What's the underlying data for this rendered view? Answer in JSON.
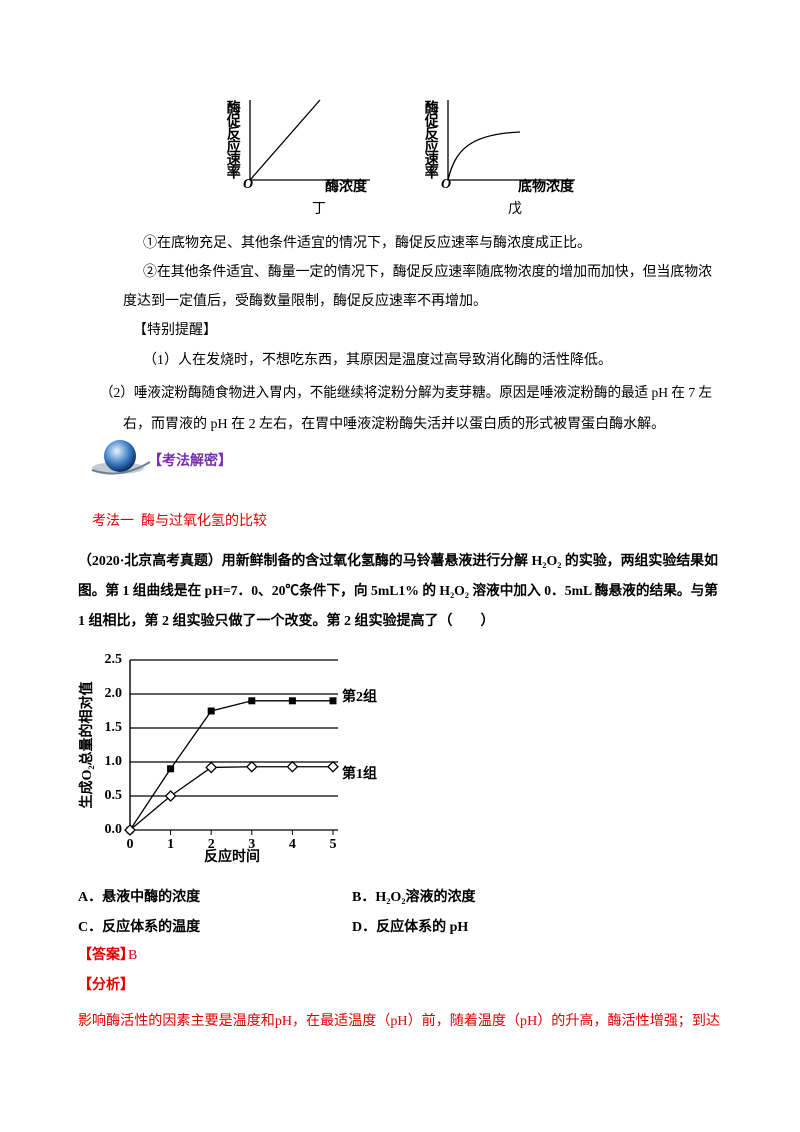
{
  "figures": [
    {
      "ylabel": "酶促反应速率",
      "origin": "O",
      "xlabel": "酶浓度",
      "caption": "丁"
    },
    {
      "ylabel": "酶促反应速率",
      "origin": "O",
      "xlabel": "底物浓度",
      "caption": "戊"
    }
  ],
  "notes": [
    "①在底物充足、其他条件适宜的情况下，酶促反应速率与酶浓度成正比。",
    "②在其他条件适宜、酶量一定的情况下，酶促反应速率随底物浓度的增加而加快，但当底物浓",
    "度达到一定值后，受酶数量限制，酶促反应速率不再增加。"
  ],
  "tip": {
    "title": "【特别提醒】",
    "items": [
      "（1）人在发烧时，不想吃东西，其原因是温度过高导致消化酶的活性降低。",
      "（2）唾液淀粉酶随食物进入胃内，不能继续将淀粉分解为麦芽糖。原因是唾液淀粉酶的最适 pH 在 7 左",
      "右，而胃液的 pH 在 2 左右，在胃中唾液淀粉酶失活并以蛋白质的形式被胃蛋白酶水解。"
    ]
  },
  "section_title": "【考法解密】",
  "method_title": "考法一  酶与过氧化氢的比较",
  "question": {
    "lines": [
      "（2020·北京高考真题）用新鲜制备的含过氧化氢酶的马铃薯悬液进行分解 H₂O₂ 的实验，两组实验结果如",
      "图。第 1 组曲线是在 pH=7．0、20℃条件下，向 5mL1% 的 H₂O₂ 溶液中加入 0．5mL 酶悬液的结果。与第",
      "1 组相比，第 2 组实验只做了一个改变。第 2 组实验提高了（　　）"
    ],
    "chart": {
      "type": "line",
      "ylabel": "生成O₂总量的相对值",
      "xlabel": "反应时间",
      "x": [
        0,
        1,
        2,
        3,
        4,
        5
      ],
      "xlim": [
        0,
        5
      ],
      "xticks": [
        0,
        1,
        2,
        3,
        4,
        5
      ],
      "ylim": [
        0,
        2.5
      ],
      "yticks": [
        {
          "value": 0,
          "label": "0.0"
        },
        0.5,
        {
          "value": 1,
          "label": "1.0"
        },
        1.5,
        {
          "value": 2,
          "label": "2.0"
        },
        2.5
      ],
      "series": [
        {
          "name": "第2组",
          "color": "#000000",
          "values": [
            0,
            0.9,
            1.75,
            1.9,
            1.9,
            1.9
          ]
        },
        {
          "name": "第1组",
          "color": "#000000",
          "values": [
            0,
            0.5,
            0.92,
            0.93,
            0.93,
            0.93
          ]
        }
      ]
    },
    "options": [
      "A．悬液中酶的浓度",
      "B．H₂O₂溶液的浓度",
      "C．反应体系的温度",
      "D．反应体系的 pH"
    ]
  },
  "answer": {
    "label": "【答案】",
    "value": "B"
  },
  "analysis": {
    "label": "【分析】",
    "lines": [
      "影响酶活性的因素主要是温度和pH，在最适温度（pH）前，随着温度（pH）的升高，酶活性增强；到达"
    ]
  }
}
